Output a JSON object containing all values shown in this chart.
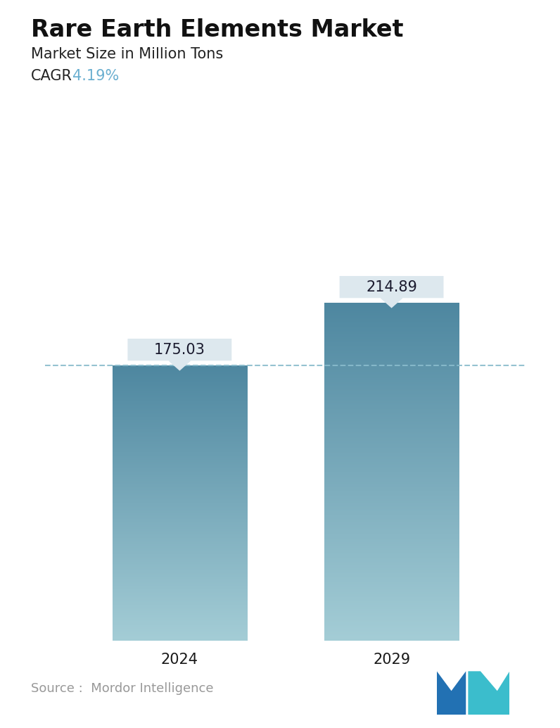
{
  "title": "Rare Earth Elements Market",
  "subtitle": "Market Size in Million Tons",
  "cagr_label": "CAGR",
  "cagr_value": "4.19%",
  "cagr_color": "#6aafd0",
  "categories": [
    "2024",
    "2029"
  ],
  "values": [
    175.03,
    214.89
  ],
  "bar_top_color": "#4e87a0",
  "bar_bottom_color": "#a4cdd6",
  "dashed_line_color": "#8abccc",
  "dashed_line_value": 175.03,
  "tooltip_bg": "#dde8ee",
  "tooltip_text_color": "#1a1a2e",
  "source_text": "Source :  Mordor Intelligence",
  "source_color": "#999999",
  "background_color": "#ffffff",
  "title_fontsize": 24,
  "subtitle_fontsize": 15,
  "cagr_fontsize": 15,
  "tick_fontsize": 15,
  "tooltip_fontsize": 15,
  "ylim": [
    0,
    250
  ],
  "bar_width": 0.28
}
